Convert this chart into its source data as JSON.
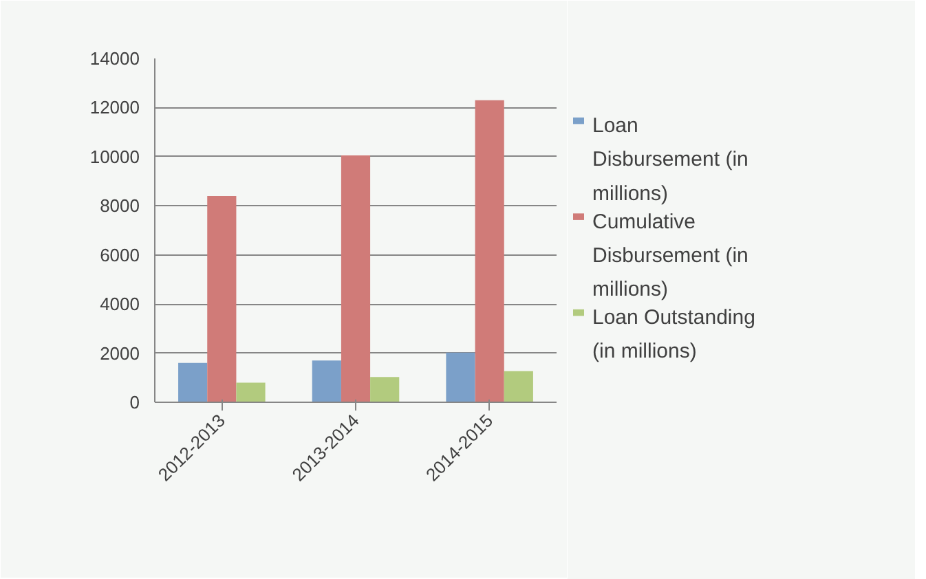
{
  "chart_data": {
    "type": "bar",
    "categories": [
      "2012-2013",
      "2013-2014",
      "2014-2015"
    ],
    "series": [
      {
        "name": "Loan Disbursement (in millions)",
        "color": "#7ba0c9",
        "values": [
          1600,
          1700,
          2020
        ]
      },
      {
        "name": "Cumulative Disbursement (in millions)",
        "color": "#d07b78",
        "values": [
          8400,
          10050,
          12300
        ]
      },
      {
        "name": "Loan Outstanding (in millions)",
        "color": "#b2cb7e",
        "values": [
          800,
          1030,
          1270
        ]
      }
    ],
    "ylim": [
      0,
      14000
    ],
    "yticks": [
      0,
      2000,
      4000,
      6000,
      8000,
      10000,
      12000,
      14000
    ],
    "grid": "y",
    "legend": "right"
  }
}
